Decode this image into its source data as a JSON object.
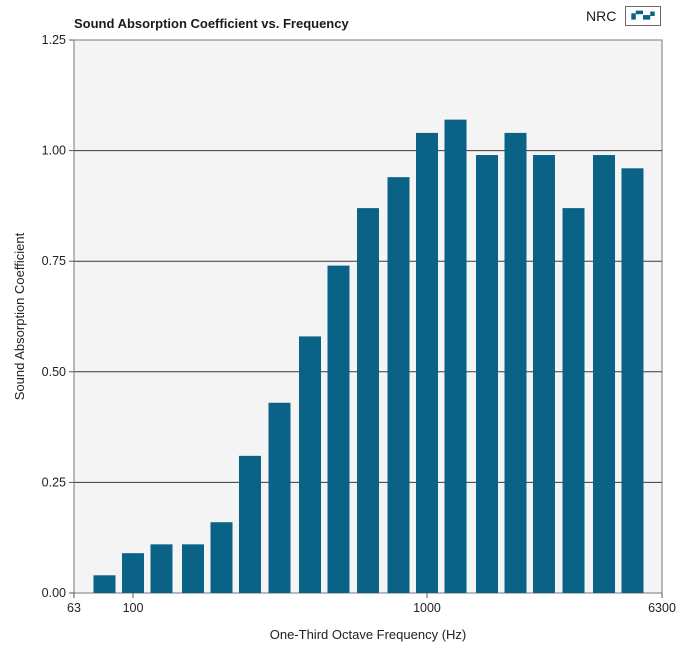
{
  "chart_data": {
    "type": "bar",
    "title": "Sound Absorption Coefficient  vs.  Frequency",
    "xlabel": "One-Third Octave Frequency (Hz)",
    "ylabel": "Sound Absorption Coefficient",
    "x_scale": "log",
    "xlim": [
      63,
      6300
    ],
    "ylim": [
      0,
      1.25
    ],
    "x_ticks": [
      63,
      100,
      1000,
      6300
    ],
    "x_tick_labels": [
      "63",
      "100",
      "1000",
      "6300"
    ],
    "y_ticks": [
      0,
      0.25,
      0.5,
      0.75,
      1.0,
      1.25
    ],
    "y_tick_labels": [
      "0.00",
      "0.25",
      "0.50",
      "0.75",
      "1.00",
      "1.25"
    ],
    "grid": "horizontal",
    "legend": {
      "position": "top-right",
      "entries": [
        "NRC"
      ]
    },
    "colors": {
      "bar": "#0b6287",
      "plot_background": "#f4f4f4",
      "gridline": "#3a3a3a"
    },
    "categories": [
      80,
      100,
      125,
      160,
      200,
      250,
      315,
      400,
      500,
      630,
      800,
      1000,
      1250,
      1600,
      2000,
      2500,
      3150,
      4000,
      5000
    ],
    "values": [
      0.04,
      0.09,
      0.11,
      0.11,
      0.16,
      0.31,
      0.43,
      0.58,
      0.74,
      0.87,
      0.94,
      1.04,
      1.07,
      0.99,
      1.04,
      0.99,
      0.87,
      0.99,
      0.96
    ]
  }
}
